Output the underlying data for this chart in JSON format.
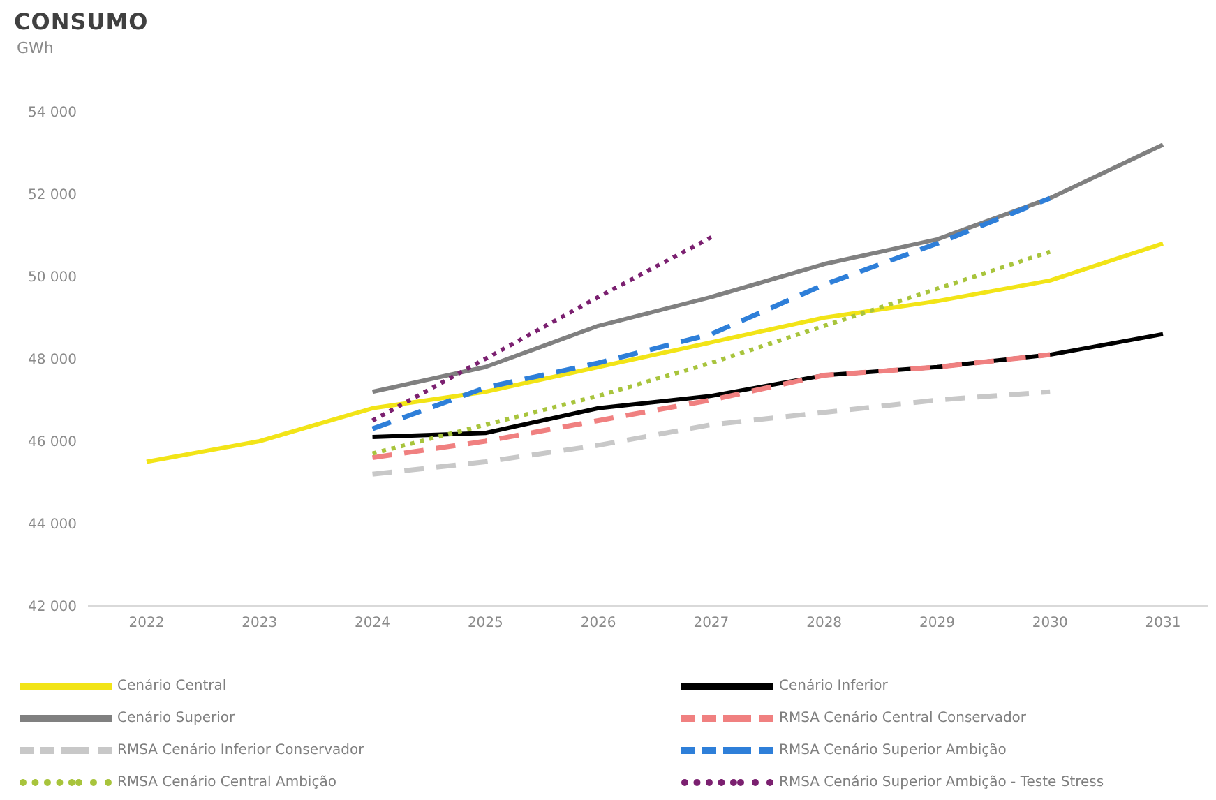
{
  "chart_data": {
    "type": "line",
    "title": "CONSUMO",
    "subtitle": "GWh",
    "categories": [
      "2022",
      "2023",
      "2024",
      "2025",
      "2026",
      "2027",
      "2028",
      "2029",
      "2030",
      "2031"
    ],
    "series": [
      {
        "name": "Cenário Central",
        "color": "#f2e417",
        "line_style": "solid",
        "values": [
          45500,
          46000,
          46800,
          47200,
          47800,
          48400,
          49000,
          49400,
          49900,
          50800
        ]
      },
      {
        "name": "Cenário Inferior",
        "color": "#000000",
        "line_style": "solid",
        "values": [
          null,
          null,
          46100,
          46200,
          46800,
          47100,
          47600,
          47800,
          48100,
          48600
        ]
      },
      {
        "name": "Cenário Superior",
        "color": "#808080",
        "line_style": "solid",
        "values": [
          null,
          null,
          47200,
          47800,
          48800,
          49500,
          50300,
          50900,
          51900,
          53200
        ]
      },
      {
        "name": "RMSA Cenário Central Conservador",
        "color": "#f08080",
        "line_style": "dashed",
        "values": [
          null,
          null,
          45600,
          46000,
          46500,
          47000,
          47600,
          47800,
          48100,
          null
        ]
      },
      {
        "name": "RMSA Cenário Inferior Conservador",
        "color": "#c8c8c8",
        "line_style": "dashed",
        "values": [
          null,
          null,
          45200,
          45500,
          45900,
          46400,
          46700,
          47000,
          47200,
          null
        ]
      },
      {
        "name": "RMSA Cenário Superior Ambição",
        "color": "#2e7fd9",
        "line_style": "dashed",
        "values": [
          null,
          null,
          46300,
          47300,
          47900,
          48600,
          49800,
          50800,
          51900,
          null
        ]
      },
      {
        "name": "RMSA Cenário Central Ambição",
        "color": "#a8c43c",
        "line_style": "dotted",
        "values": [
          null,
          null,
          45700,
          46400,
          47100,
          47900,
          48800,
          49700,
          50600,
          null
        ]
      },
      {
        "name": "RMSA Cenário Superior Ambição - Teste Stress",
        "color": "#7b2070",
        "line_style": "dotted",
        "values": [
          null,
          null,
          46500,
          48000,
          49500,
          50950,
          null,
          null,
          null,
          null
        ]
      }
    ],
    "ylim": [
      42000,
      54000
    ],
    "yticks": [
      {
        "value": 42000,
        "label": "42 000"
      },
      {
        "value": 44000,
        "label": "44 000"
      },
      {
        "value": 46000,
        "label": "46 000"
      },
      {
        "value": 48000,
        "label": "48 000"
      },
      {
        "value": 50000,
        "label": "50 000"
      },
      {
        "value": 52000,
        "label": "52 000"
      },
      {
        "value": 54000,
        "label": "54 000"
      }
    ],
    "legend": "bottom"
  }
}
